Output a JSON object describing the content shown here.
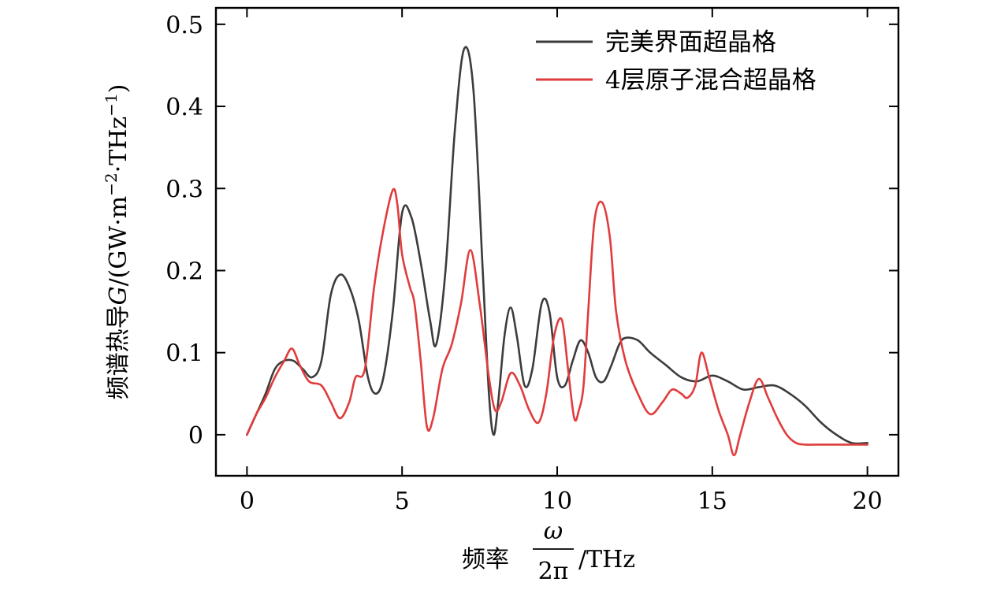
{
  "chart_data": {
    "type": "line",
    "title": "",
    "xlabel": {
      "prefix": "频率",
      "fraction_numerator": "ω",
      "fraction_denominator": "2π",
      "suffix": "/THz"
    },
    "ylabel": {
      "prefix": "频谱热导",
      "symbol": "G",
      "unit_open": "/(GW·m",
      "unit_exp1": "−2",
      "unit_mid": "·THz",
      "unit_exp2": "−1",
      "unit_close": ")"
    },
    "xlim": [
      -1,
      21
    ],
    "ylim": [
      -0.05,
      0.52
    ],
    "xticks": [
      0,
      5,
      10,
      15,
      20
    ],
    "xtick_labels": [
      "0",
      "5",
      "10",
      "15",
      "20"
    ],
    "yticks": [
      0,
      0.1,
      0.2,
      0.3,
      0.4,
      0.5
    ],
    "ytick_labels": [
      "0",
      "0.1",
      "0.2",
      "0.3",
      "0.4",
      "0.5"
    ],
    "grid": false,
    "legend_position": "top-right",
    "series": [
      {
        "name": "完美界面超晶格",
        "color": "#3c3c3c",
        "x": [
          0,
          0.3,
          0.6,
          0.9,
          1.2,
          1.5,
          1.8,
          2.1,
          2.4,
          2.7,
          3.0,
          3.3,
          3.6,
          3.9,
          4.15,
          4.4,
          4.7,
          5.0,
          5.3,
          5.6,
          5.9,
          6.1,
          6.4,
          6.7,
          7.0,
          7.3,
          7.6,
          7.8,
          7.95,
          8.1,
          8.3,
          8.5,
          8.7,
          8.95,
          9.2,
          9.5,
          9.75,
          10.0,
          10.25,
          10.5,
          10.75,
          11.0,
          11.25,
          11.5,
          11.75,
          12.0,
          12.2,
          12.6,
          13.0,
          13.5,
          14.0,
          14.5,
          15.0,
          15.5,
          16.0,
          16.5,
          17.0,
          17.5,
          18.0,
          18.5,
          19.0,
          19.5,
          20.0
        ],
        "y": [
          0.0,
          0.025,
          0.05,
          0.08,
          0.09,
          0.09,
          0.08,
          0.07,
          0.09,
          0.17,
          0.195,
          0.18,
          0.14,
          0.07,
          0.05,
          0.07,
          0.15,
          0.27,
          0.265,
          0.21,
          0.14,
          0.11,
          0.2,
          0.37,
          0.47,
          0.42,
          0.2,
          0.05,
          0.0,
          0.04,
          0.12,
          0.155,
          0.12,
          0.06,
          0.08,
          0.16,
          0.15,
          0.07,
          0.06,
          0.09,
          0.115,
          0.1,
          0.07,
          0.065,
          0.085,
          0.11,
          0.118,
          0.115,
          0.1,
          0.085,
          0.07,
          0.065,
          0.072,
          0.065,
          0.055,
          0.058,
          0.06,
          0.05,
          0.035,
          0.015,
          0.0,
          -0.01,
          -0.01
        ]
      },
      {
        "name": "4层原子混合超晶格",
        "color": "#e03c3c",
        "x": [
          0,
          0.3,
          0.6,
          0.9,
          1.2,
          1.45,
          1.7,
          2.0,
          2.4,
          2.7,
          3.0,
          3.3,
          3.5,
          3.8,
          4.1,
          4.4,
          4.7,
          4.85,
          5.0,
          5.25,
          5.4,
          5.6,
          5.8,
          6.0,
          6.3,
          6.6,
          6.9,
          7.2,
          7.5,
          7.8,
          8.0,
          8.2,
          8.5,
          8.8,
          9.1,
          9.4,
          9.65,
          9.9,
          10.15,
          10.35,
          10.55,
          10.7,
          10.85,
          11.0,
          11.2,
          11.45,
          11.7,
          11.9,
          12.2,
          12.6,
          13.0,
          13.4,
          13.7,
          14.0,
          14.2,
          14.45,
          14.65,
          14.9,
          15.2,
          15.5,
          15.7,
          15.9,
          16.2,
          16.5,
          16.8,
          17.1,
          17.4,
          17.7,
          18.0,
          18.5,
          19.0,
          19.5,
          20.0
        ],
        "y": [
          0.0,
          0.025,
          0.045,
          0.07,
          0.09,
          0.105,
          0.085,
          0.065,
          0.06,
          0.04,
          0.02,
          0.04,
          0.07,
          0.08,
          0.18,
          0.25,
          0.298,
          0.28,
          0.22,
          0.18,
          0.16,
          0.09,
          0.01,
          0.02,
          0.08,
          0.11,
          0.16,
          0.225,
          0.16,
          0.07,
          0.03,
          0.04,
          0.075,
          0.06,
          0.03,
          0.015,
          0.05,
          0.12,
          0.14,
          0.08,
          0.02,
          0.03,
          0.06,
          0.15,
          0.26,
          0.283,
          0.24,
          0.15,
          0.09,
          0.05,
          0.025,
          0.04,
          0.055,
          0.05,
          0.045,
          0.06,
          0.1,
          0.07,
          0.03,
          0.0,
          -0.025,
          0.0,
          0.04,
          0.068,
          0.045,
          0.02,
          0.0,
          -0.01,
          -0.012,
          -0.012,
          -0.012,
          -0.012,
          -0.012
        ]
      }
    ]
  }
}
